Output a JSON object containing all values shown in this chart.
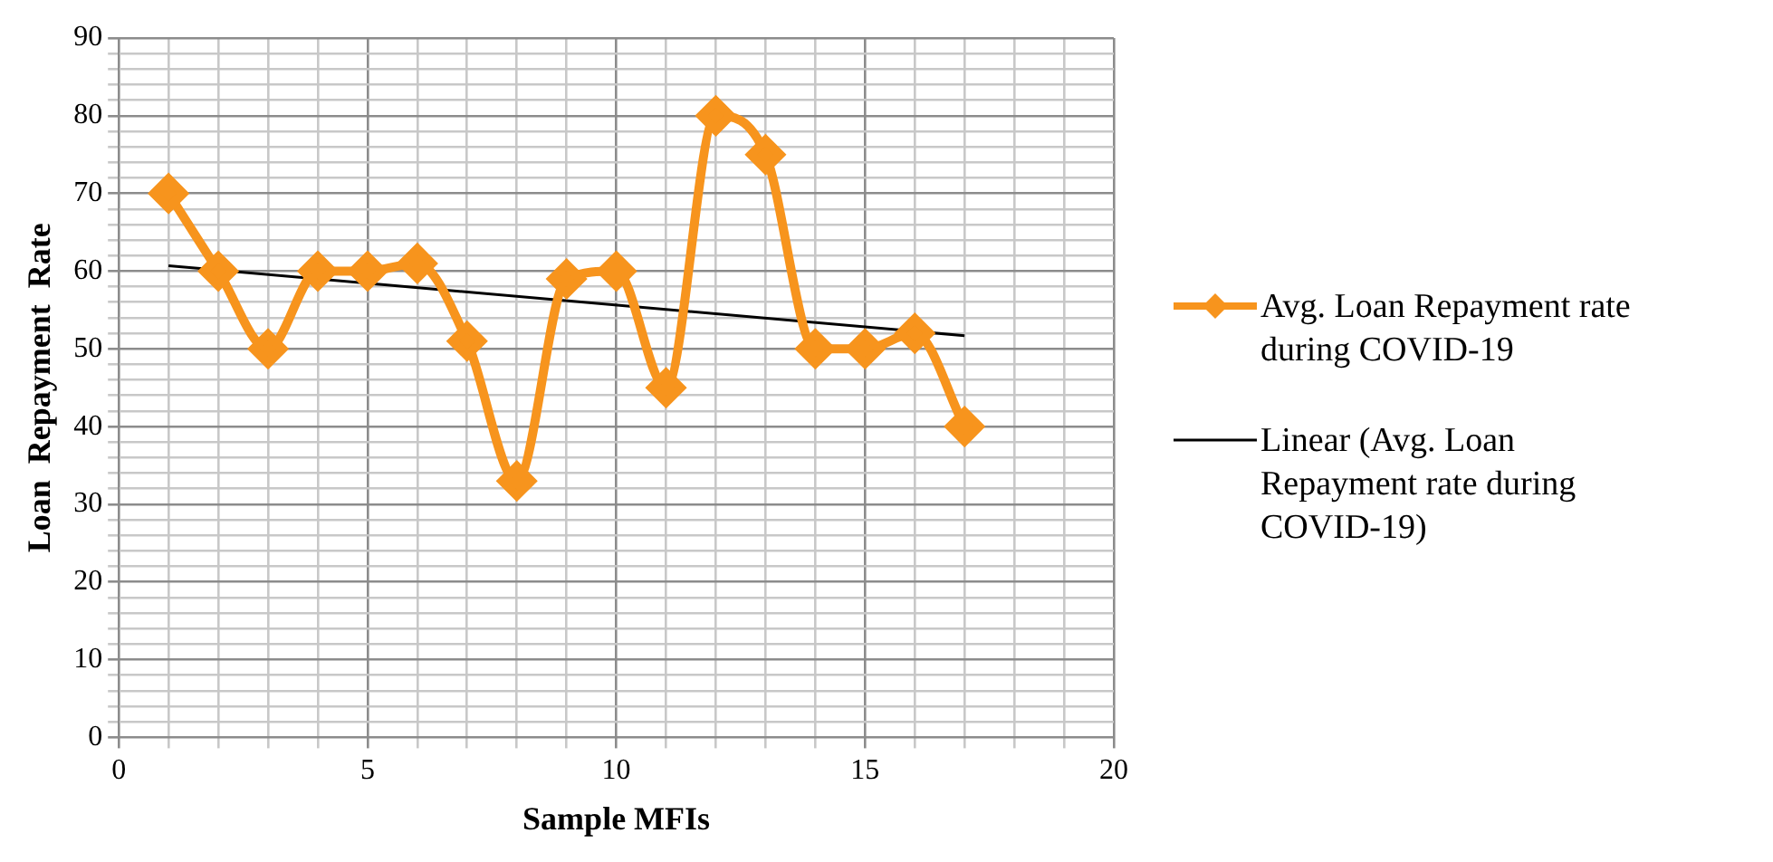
{
  "chart_data": {
    "type": "line",
    "xlabel": "Sample MFIs",
    "ylabel": "Loan  Repayment  Rate",
    "x": [
      1,
      2,
      3,
      4,
      5,
      6,
      7,
      8,
      9,
      10,
      11,
      12,
      13,
      14,
      15,
      16,
      17
    ],
    "series": [
      {
        "name": "Avg. Loan Repayment rate during COVID-19",
        "color": "#f7941d",
        "marker": "diamond",
        "values": [
          70,
          60,
          50,
          60,
          60,
          61,
          51,
          33,
          59,
          60,
          45,
          80,
          75,
          50,
          50,
          52,
          40
        ]
      },
      {
        "name": "Linear (Avg. Loan Repayment rate during COVID-19)",
        "type": "line",
        "color": "#000000",
        "marker": "none",
        "x": [
          1,
          17
        ],
        "values": [
          60.7,
          51.7
        ]
      }
    ],
    "xlim": [
      0,
      20
    ],
    "xticks": [
      0,
      {
        "value": 1,
        "label": null
      },
      {
        "value": 2,
        "label": null
      },
      {
        "value": 3,
        "label": null
      },
      {
        "value": 4,
        "label": null
      },
      5,
      {
        "value": 6,
        "label": null
      },
      {
        "value": 7,
        "label": null
      },
      {
        "value": 8,
        "label": null
      },
      {
        "value": 9,
        "label": null
      },
      10,
      {
        "value": 11,
        "label": null
      },
      {
        "value": 12,
        "label": null
      },
      {
        "value": 13,
        "label": null
      },
      {
        "value": 14,
        "label": null
      },
      15,
      {
        "value": 16,
        "label": null
      },
      {
        "value": 17,
        "label": null
      },
      {
        "value": 18,
        "label": null
      },
      {
        "value": 19,
        "label": null
      },
      20
    ],
    "ylim": [
      0,
      90
    ],
    "yticks": [
      0,
      {
        "value": 2,
        "label": null
      },
      {
        "value": 4,
        "label": null
      },
      {
        "value": 6,
        "label": null
      },
      {
        "value": 8,
        "label": null
      },
      10,
      {
        "value": 12,
        "label": null
      },
      {
        "value": 14,
        "label": null
      },
      {
        "value": 16,
        "label": null
      },
      {
        "value": 18,
        "label": null
      },
      20,
      {
        "value": 22,
        "label": null
      },
      {
        "value": 24,
        "label": null
      },
      {
        "value": 26,
        "label": null
      },
      {
        "value": 28,
        "label": null
      },
      30,
      {
        "value": 32,
        "label": null
      },
      {
        "value": 34,
        "label": null
      },
      {
        "value": 36,
        "label": null
      },
      {
        "value": 38,
        "label": null
      },
      40,
      {
        "value": 42,
        "label": null
      },
      {
        "value": 44,
        "label": null
      },
      {
        "value": 46,
        "label": null
      },
      {
        "value": 48,
        "label": null
      },
      50,
      {
        "value": 52,
        "label": null
      },
      {
        "value": 54,
        "label": null
      },
      {
        "value": 56,
        "label": null
      },
      {
        "value": 58,
        "label": null
      },
      60,
      {
        "value": 62,
        "label": null
      },
      {
        "value": 64,
        "label": null
      },
      {
        "value": 66,
        "label": null
      },
      {
        "value": 68,
        "label": null
      },
      70,
      {
        "value": 72,
        "label": null
      },
      {
        "value": 74,
        "label": null
      },
      {
        "value": 76,
        "label": null
      },
      {
        "value": 78,
        "label": null
      },
      80,
      {
        "value": 82,
        "label": null
      },
      {
        "value": 84,
        "label": null
      },
      {
        "value": 86,
        "label": null
      },
      {
        "value": 88,
        "label": null
      },
      90
    ],
    "grid": true,
    "legend": "right"
  }
}
